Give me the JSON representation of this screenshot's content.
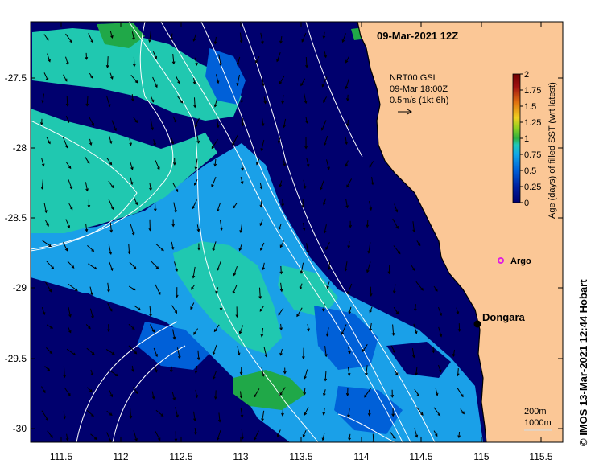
{
  "title": "09-Mar-2021 12Z",
  "current_legend": {
    "line1": "NRT00 GSL",
    "line2": "09-Mar 18:00Z",
    "line3": "0.5m/s (1kt 6h)"
  },
  "colorbar": {
    "title": "Age (days) of filled SST (wrt latest)",
    "ticks": [
      "2",
      "1.75",
      "1.5",
      "1.25",
      "1",
      "0.75",
      "0.5",
      "0.25",
      "0"
    ],
    "colors": [
      "#00006e",
      "#00209a",
      "#0060d8",
      "#00a0e8",
      "#20c8b8",
      "#30b040",
      "#90d020",
      "#f0d020",
      "#e07010",
      "#a01010",
      "#700000"
    ]
  },
  "x_ticks": [
    "111.5",
    "112",
    "112.5",
    "113",
    "113.5",
    "114",
    "114.5",
    "115",
    "115.5"
  ],
  "y_ticks": [
    "-27.5",
    "-28",
    "-28.5",
    "-29",
    "-29.5",
    "-30"
  ],
  "places": {
    "argo": "Argo",
    "dongara": "Dongara"
  },
  "depth_legend": {
    "line1": "200m",
    "line2": "1000m"
  },
  "credit": "© IMOS 13-Mar-2021 12:44 Hobart",
  "colors": {
    "land": "#fbc796",
    "navy": "#00006e",
    "blue": "#0060d8",
    "light_blue": "#1aa0e8",
    "teal": "#20c8b0",
    "green": "#20a848",
    "argo": "#e020e0"
  }
}
